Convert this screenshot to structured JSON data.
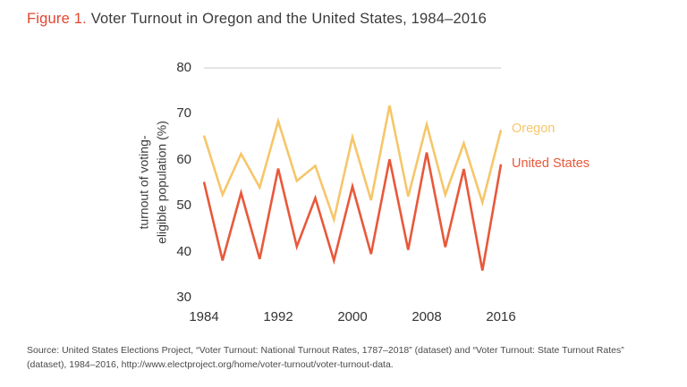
{
  "figure": {
    "label": "Figure 1.",
    "title": " Voter Turnout in Oregon and the United States, 1984–2016"
  },
  "source": "Source: United States Elections Project, “Voter Turnout: National Turnout Rates, 1787–2018” (dataset) and “Voter Turnout: State Turnout Rates” (dataset), 1984–2016, http://www.electproject.org/home/voter-turnout/voter-turnout-data.",
  "colors": {
    "oregon": "#f6c66a",
    "united_states": "#e8583a",
    "figure_label": "#e4452f",
    "grid": "#c9c9c9",
    "text": "#333333"
  },
  "chart_data": {
    "type": "line",
    "x": [
      1984,
      1986,
      1988,
      1990,
      1992,
      1994,
      1996,
      1998,
      2000,
      2002,
      2004,
      2006,
      2008,
      2010,
      2012,
      2014,
      2016
    ],
    "series": [
      {
        "name": "Oregon",
        "color": "#f6c66a",
        "values": [
          65.3,
          52.4,
          61.3,
          54.0,
          68.4,
          55.4,
          58.7,
          47.0,
          64.9,
          51.2,
          71.8,
          52.0,
          67.7,
          52.4,
          63.6,
          50.7,
          66.5
        ]
      },
      {
        "name": "United States",
        "color": "#e8583a",
        "values": [
          55.2,
          38.1,
          52.8,
          38.4,
          58.1,
          41.1,
          51.7,
          38.1,
          54.2,
          39.5,
          60.1,
          40.4,
          61.6,
          41.0,
          58.0,
          35.9,
          59.0
        ]
      }
    ],
    "title": "Voter Turnout in Oregon and the United States, 1984–2016",
    "xlabel": "",
    "ylabel": "turnout of voting-\neligible population (%)",
    "yticks": [
      30,
      40,
      50,
      60,
      70,
      80
    ],
    "xticks": [
      1984,
      1992,
      2000,
      2008,
      2016
    ],
    "ylim": [
      30,
      80
    ],
    "xlim": [
      1984,
      2016
    ],
    "grid": "single horizontal gridline at y=80 (top of plot)",
    "legend_position": "labels at right edge, aligned with line ends"
  }
}
